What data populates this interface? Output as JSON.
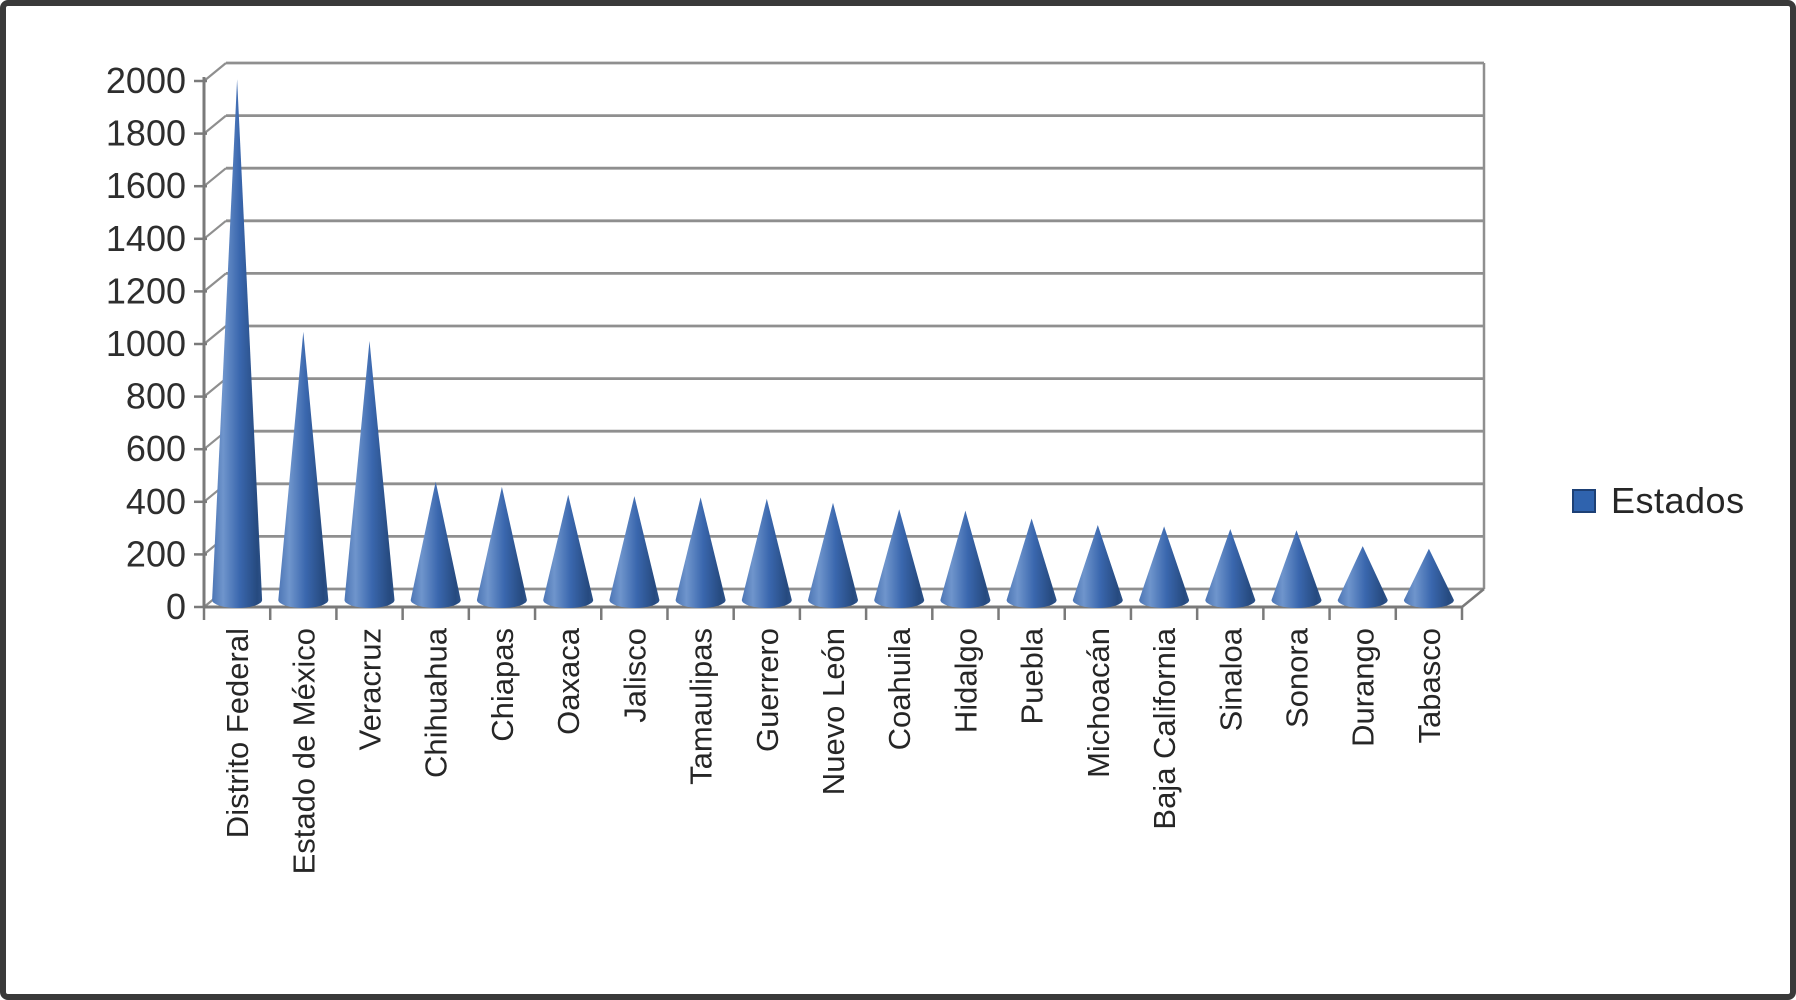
{
  "chart_data": {
    "type": "bar",
    "variant": "3d-cone-pyramid",
    "title": "",
    "xlabel": "",
    "ylabel": "",
    "categories": [
      "Distrito Federal",
      "Estado de México",
      "Veracruz",
      "Chihuahua",
      "Chiapas",
      "Oaxaca",
      "Jalisco",
      "Tamaulipas",
      "Guerrero",
      "Nuevo León",
      "Coahuila",
      "Hidalgo",
      "Puebla",
      "Michoacán",
      "Baja California",
      "Sinaloa",
      "Sonora",
      "Durango",
      "Tabasco"
    ],
    "series": [
      {
        "name": "Estados",
        "values": [
          1980,
          1020,
          985,
          450,
          430,
          400,
          395,
          390,
          385,
          370,
          345,
          340,
          310,
          285,
          280,
          270,
          265,
          205,
          195
        ]
      }
    ],
    "ylim": [
      0,
      2000
    ],
    "ytick_step": 200,
    "yticks": [
      0,
      200,
      400,
      600,
      800,
      1000,
      1200,
      1400,
      1600,
      1800,
      2000
    ],
    "grid": true,
    "legend": {
      "position": "right",
      "label": "Estados"
    },
    "colors": {
      "gridline": "#8f8f8f",
      "axis": "#7a7a7a",
      "tick_text": "#2e2e2e",
      "category_text": "#262626",
      "legend_swatch": "#2f63ae",
      "legend_swatch_border": "#1d4075",
      "frame_border": "#3a3a3a",
      "background": "#ffffff",
      "cone_gradient_stops": [
        [
          "0",
          "#4d76b5"
        ],
        [
          "0.22",
          "#6f95cc"
        ],
        [
          "0.55",
          "#3a67ae"
        ],
        [
          "0.9",
          "#264a7f"
        ],
        [
          "1",
          "#2d5288"
        ]
      ]
    }
  }
}
